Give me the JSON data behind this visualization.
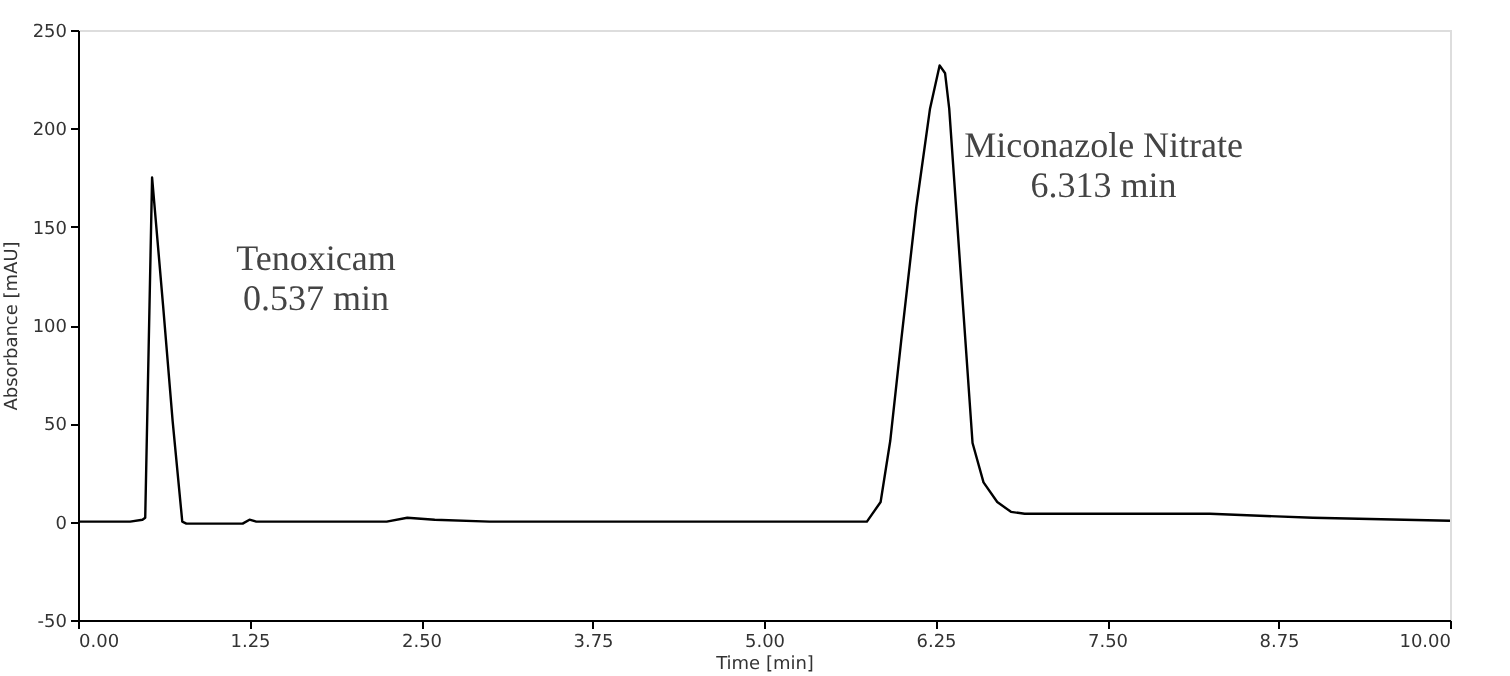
{
  "chart_data": {
    "type": "line",
    "xlabel": "Time [min]",
    "ylabel": "Absorbance [mAU]",
    "x": [
      0,
      0.38,
      0.47,
      0.49,
      0.54,
      0.62,
      0.69,
      0.76,
      0.79,
      1.2,
      1.25,
      1.3,
      2.0,
      2.25,
      2.4,
      2.6,
      3.0,
      4.0,
      5.0,
      5.75,
      5.85,
      5.92,
      6.0,
      6.11,
      6.21,
      6.28,
      6.32,
      6.35,
      6.45,
      6.52,
      6.6,
      6.7,
      6.8,
      6.9,
      7.0,
      8.25,
      9.0,
      10.0
    ],
    "series": [
      {
        "color": "#000000",
        "values": [
          0,
          0,
          1,
          2,
          175,
          110,
          51,
          0,
          -1,
          -1,
          1,
          0,
          0,
          0,
          2,
          1,
          0,
          0,
          0,
          0,
          10,
          41,
          92,
          160,
          210,
          232,
          228,
          210,
          110,
          40,
          20,
          10,
          5,
          4,
          4,
          4,
          2,
          0.5
        ]
      }
    ],
    "xlim": [
      0,
      10
    ],
    "ylim": [
      -50,
      250
    ],
    "xticks": [
      {
        "value": 0,
        "label": "0.00"
      },
      {
        "value": 1.25,
        "label": "1.25"
      },
      {
        "value": 2.5,
        "label": "2.50"
      },
      {
        "value": 3.75,
        "label": "3.75"
      },
      {
        "value": 5,
        "label": "5.00"
      },
      {
        "value": 6.25,
        "label": "6.25"
      },
      {
        "value": 7.5,
        "label": "7.50"
      },
      {
        "value": 8.75,
        "label": "8.75"
      },
      {
        "value": 10,
        "label": "10.00"
      }
    ],
    "yticks": [
      -50,
      0,
      50,
      100,
      150,
      200,
      250
    ],
    "grid": false,
    "annotations": [
      {
        "text": "Tenoxicam\n0.537 min",
        "x": 0.54,
        "y": 175
      },
      {
        "text": "Miconazole Nitrate\n6.313 min",
        "x": 6.28,
        "y": 232
      }
    ]
  }
}
